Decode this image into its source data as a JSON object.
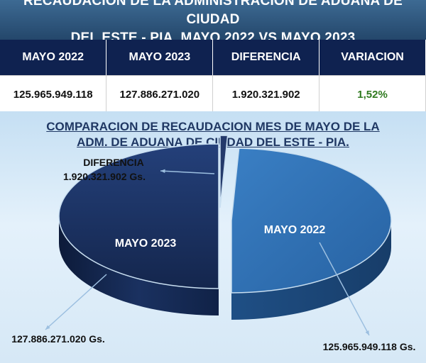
{
  "header": {
    "line1": "RECAUDACION DE LA ADMINISTRACION DE ADUANA DE CIUDAD",
    "line2": "DEL ESTE - PIA, MAYO 2022 VS MAYO 2023"
  },
  "summary": {
    "columns": [
      "MAYO 2022",
      "MAYO 2023",
      "DIFERENCIA",
      "VARIACION"
    ],
    "values": [
      "125.965.949.118",
      "127.886.271.020",
      "1.920.321.902",
      "1,52%"
    ]
  },
  "colors": {
    "mayo_2022": "#2e6fb3",
    "mayo_2023": "#1b3363",
    "diferencia": "#243a6b",
    "variacion_text": "#2f7a1f"
  },
  "chart_data": {
    "type": "pie",
    "title_line1": "COMPARACION DE RECAUDACION MES DE MAYO DE LA",
    "title_line2": "ADM. DE ADUANA DE CIUDAD DEL ESTE - PIA.",
    "slices": [
      {
        "name": "MAYO 2022",
        "value": 125965949118,
        "value_label": "125.965.949.118  Gs."
      },
      {
        "name": "MAYO 2023",
        "value": 127886271020,
        "value_label": "127.886.271.020 Gs."
      },
      {
        "name": "DIFERENCIA",
        "value": 1920321902,
        "value_label": "1.920.321.902 Gs."
      }
    ]
  }
}
